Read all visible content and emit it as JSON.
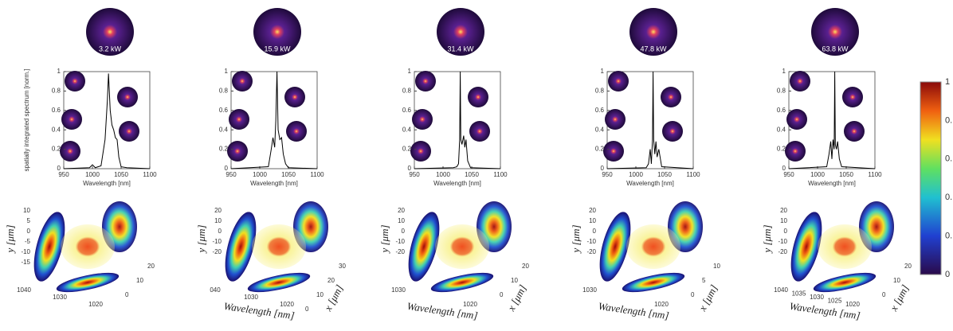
{
  "chart_data": [
    {
      "type": "line",
      "annotation": "3.2 kW",
      "y_label": "spatially integrated spectrum [norm.]",
      "x_label": "Wavelength [nm]",
      "x": [
        950,
        995,
        1000,
        1005,
        1015,
        1022,
        1026,
        1028,
        1031,
        1034,
        1037,
        1040,
        1043,
        1046,
        1050,
        1060,
        1100
      ],
      "values": [
        0,
        0.01,
        0.04,
        0.01,
        0.03,
        0.3,
        0.7,
        0.98,
        0.6,
        0.45,
        0.4,
        0.32,
        0.3,
        0.12,
        0.02,
        0.01,
        0
      ],
      "color": "#000000",
      "xlim": [
        950,
        1100
      ],
      "ylim": [
        0,
        1
      ],
      "xticks": [
        950,
        1000,
        1050,
        1100
      ],
      "yticks": [
        0,
        0.2,
        0.4,
        0.6,
        0.8,
        1
      ]
    },
    {
      "type": "line",
      "annotation": "15.9 kW",
      "x_label": "Wavelength [nm]",
      "x": [
        950,
        1015,
        1020,
        1023,
        1026,
        1028,
        1030,
        1032,
        1035,
        1038,
        1041,
        1045,
        1050,
        1100
      ],
      "values": [
        0,
        0.02,
        0.2,
        0.32,
        0.22,
        0.5,
        1,
        0.4,
        0.3,
        0.32,
        0.15,
        0.05,
        0.01,
        0
      ],
      "color": "#000000",
      "xlim": [
        950,
        1100
      ],
      "ylim": [
        0,
        1
      ],
      "xticks": [
        950,
        1000,
        1050,
        1100
      ],
      "yticks": [
        0,
        0.2,
        0.4,
        0.6,
        0.8,
        1
      ]
    },
    {
      "type": "line",
      "annotation": "31.4 kW",
      "x_label": "Wavelength [nm]",
      "x": [
        950,
        1018,
        1024,
        1027,
        1029,
        1030,
        1031,
        1033,
        1036,
        1038,
        1040,
        1043,
        1048,
        1100
      ],
      "values": [
        0,
        0.01,
        0.02,
        0.05,
        0.3,
        1,
        0.3,
        0.25,
        0.34,
        0.22,
        0.3,
        0.08,
        0.01,
        0
      ],
      "color": "#000000",
      "xlim": [
        950,
        1100
      ],
      "ylim": [
        0,
        1
      ],
      "xticks": [
        950,
        1000,
        1050,
        1100
      ],
      "yticks": [
        0,
        0.2,
        0.4,
        0.6,
        0.8,
        1
      ]
    },
    {
      "type": "line",
      "annotation": "47.8 kW",
      "x_label": "Wavelength [nm]",
      "x": [
        950,
        1018,
        1022,
        1025,
        1027,
        1029,
        1030,
        1031,
        1033,
        1035,
        1037,
        1040,
        1045,
        1100
      ],
      "values": [
        0,
        0.01,
        0.05,
        0.2,
        0.05,
        0.3,
        1,
        0.3,
        0.15,
        0.28,
        0.12,
        0.2,
        0.02,
        0
      ],
      "color": "#000000",
      "xlim": [
        950,
        1100
      ],
      "ylim": [
        0,
        1
      ],
      "xticks": [
        950,
        1000,
        1050,
        1100
      ],
      "yticks": [
        0,
        0.2,
        0.4,
        0.6,
        0.8,
        1
      ]
    },
    {
      "type": "line",
      "annotation": "63.8 kW",
      "x_label": "Wavelength [nm]",
      "x": [
        950,
        1016,
        1020,
        1023,
        1025,
        1027,
        1029,
        1030,
        1031,
        1033,
        1035,
        1038,
        1042,
        1100
      ],
      "values": [
        0,
        0.02,
        0.15,
        0.28,
        0.1,
        0.3,
        0.2,
        1,
        0.25,
        0.2,
        0.28,
        0.1,
        0.02,
        0
      ],
      "color": "#000000",
      "xlim": [
        950,
        1100
      ],
      "ylim": [
        0,
        1
      ],
      "xticks": [
        950,
        1000,
        1050,
        1100
      ],
      "yticks": [
        0,
        0.2,
        0.4,
        0.6,
        0.8,
        1
      ]
    }
  ],
  "volume_plots": [
    {
      "y_label": "y [μm]",
      "y_ticks": [
        "10",
        "5",
        "0",
        "-5",
        "-10",
        "-15"
      ],
      "w_ticks": [
        "1040",
        "1030",
        "1020"
      ],
      "x_ticks": [
        "20",
        "10",
        "0"
      ]
    },
    {
      "y_label": "y [μm]",
      "w_label": "Wavelength [nm]",
      "x_label": "x [μm]",
      "y_ticks": [
        "20",
        "10",
        "0",
        "-10",
        "-20"
      ],
      "w_ticks": [
        "040",
        "1030",
        "1020"
      ],
      "x_ticks": [
        "30",
        "20",
        "10",
        "0"
      ]
    },
    {
      "y_label": "y [μm]",
      "w_label": "Wavelength [nm]",
      "x_label": "x [μm]",
      "y_ticks": [
        "20",
        "10",
        "0",
        "-10",
        "-20"
      ],
      "w_ticks": [
        "1030",
        "1020"
      ],
      "x_ticks": [
        "20",
        "10",
        "0"
      ]
    },
    {
      "y_label": "y [μm]",
      "w_label": "Wavelength [nm]",
      "x_label": "x [μm]",
      "y_ticks": [
        "20",
        "10",
        "0",
        "-10",
        "-20"
      ],
      "w_ticks": [
        "1030",
        "1020"
      ],
      "x_ticks": [
        "10",
        "5",
        "0"
      ]
    },
    {
      "y_label": "y [μm]",
      "w_label": "Wavelength [nm]",
      "x_label": "x [μm]",
      "y_ticks": [
        "20",
        "10",
        "0",
        "-10",
        "-20"
      ],
      "w_ticks": [
        "1040",
        "1035",
        "1030",
        "1025",
        "1020"
      ],
      "x_ticks": [
        "20",
        "10",
        "0"
      ]
    }
  ],
  "colorbar": {
    "labels": [
      "1",
      "0.",
      "0.",
      "0.",
      "0.",
      "0"
    ]
  }
}
